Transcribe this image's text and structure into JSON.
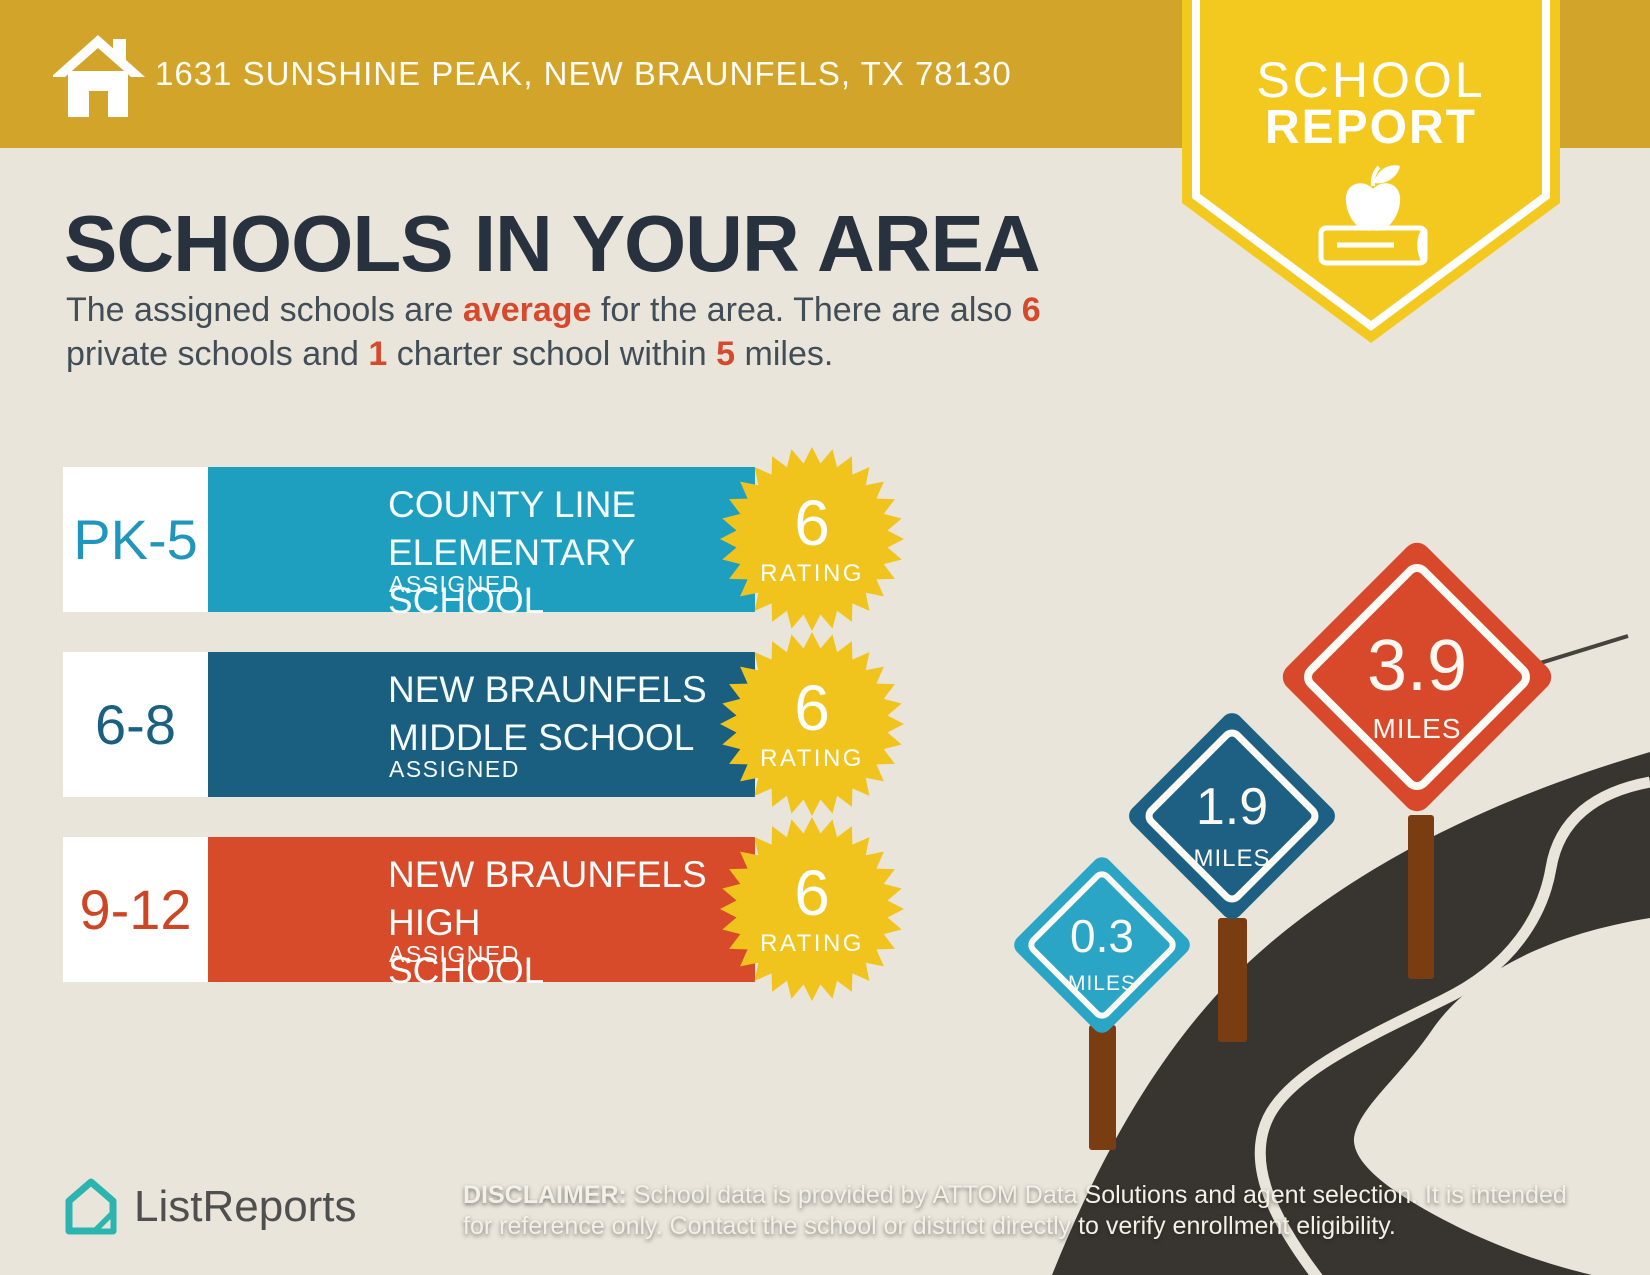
{
  "header": {
    "address": "1631 SUNSHINE PEAK, NEW BRAUNFELS, TX 78130",
    "badge": {
      "line1": "SCHOOL",
      "line2": "REPORT"
    }
  },
  "main": {
    "title": "SCHOOLS IN YOUR AREA",
    "subtitle": {
      "l1a": "The assigned schools are ",
      "l1b": "average",
      "l1c": " for the area. There are also ",
      "l1d": "6",
      "l2a": "private schools and ",
      "l2b": "1",
      "l2c": " charter school within ",
      "l2d": "5",
      "l2e": " miles."
    }
  },
  "schools": [
    {
      "grades": "PK-5",
      "name_line1": "COUNTY LINE",
      "name_line2": "ELEMENTARY SCHOOL",
      "status": "ASSIGNED",
      "rating": "6",
      "rating_label": "RATING",
      "bar_color": "#1F9FC0",
      "grade_color": "#2196BC"
    },
    {
      "grades": "6-8",
      "name_line1": "NEW BRAUNFELS",
      "name_line2": "MIDDLE SCHOOL",
      "status": "ASSIGNED",
      "rating": "6",
      "rating_label": "RATING",
      "bar_color": "#1A5F80",
      "grade_color": "#1A6080"
    },
    {
      "grades": "9-12",
      "name_line1": "NEW BRAUNFELS HIGH",
      "name_line2": "SCHOOL",
      "status": "ASSIGNED",
      "rating": "6",
      "rating_label": "RATING",
      "bar_color": "#D74A2A",
      "grade_color": "#CC4626"
    }
  ],
  "signs": [
    {
      "distance": "0.3",
      "unit": "MILES",
      "color": "#2AA5C5"
    },
    {
      "distance": "1.9",
      "unit": "MILES",
      "color": "#1D6083"
    },
    {
      "distance": "3.9",
      "unit": "MILES",
      "color": "#D8492B"
    }
  ],
  "footer": {
    "brand": "ListReports",
    "disclaimer_bold": "DISCLAIMER:",
    "disclaimer_rest1": " School data is provided by ATTOM Data Solutions and agent selection. It is intended",
    "disclaimer_line2": "for reference only. Contact the school or district directly to verify enrollment eligibility.",
    "colors": {
      "badge_yellow": "#F4C91F",
      "header_gold": "#D2A429",
      "accent_red": "#D6492D",
      "road_dark": "#383531",
      "post_brown": "#7A3D12",
      "brand_teal": "#2CB4B0"
    }
  }
}
